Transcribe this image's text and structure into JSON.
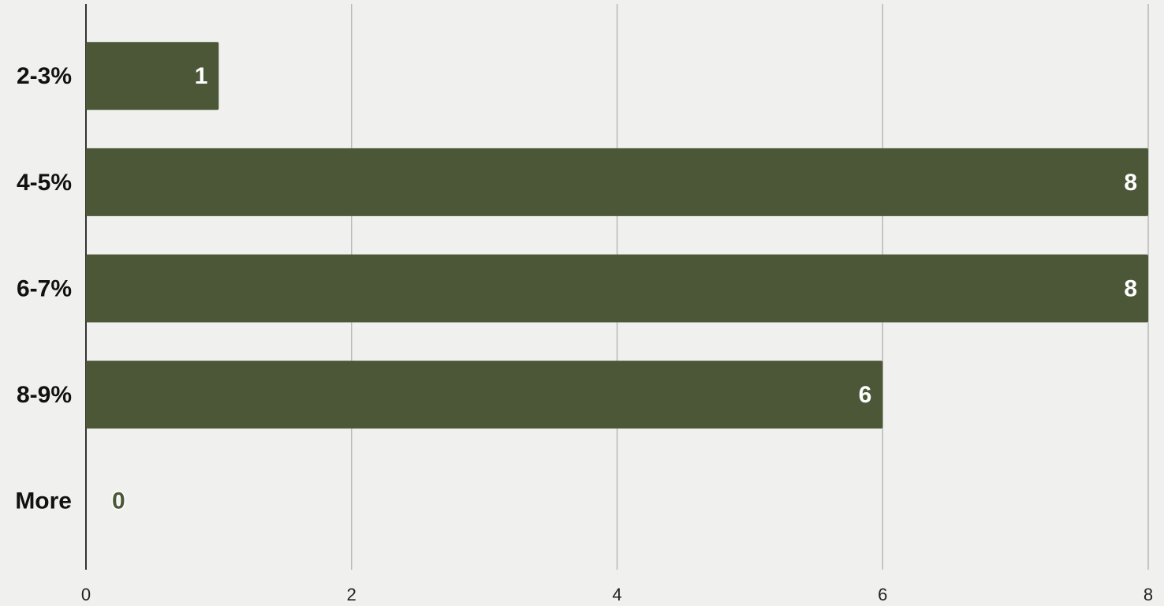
{
  "chart_data": {
    "type": "bar",
    "orientation": "horizontal",
    "categories": [
      "2-3%",
      "4-5%",
      "6-7%",
      "8-9%",
      "More"
    ],
    "values": [
      1,
      8,
      8,
      6,
      0
    ],
    "color": "#4b5737",
    "xlim": [
      0,
      8
    ],
    "xticks": [
      0,
      2,
      4,
      6,
      8
    ],
    "grid": true
  }
}
